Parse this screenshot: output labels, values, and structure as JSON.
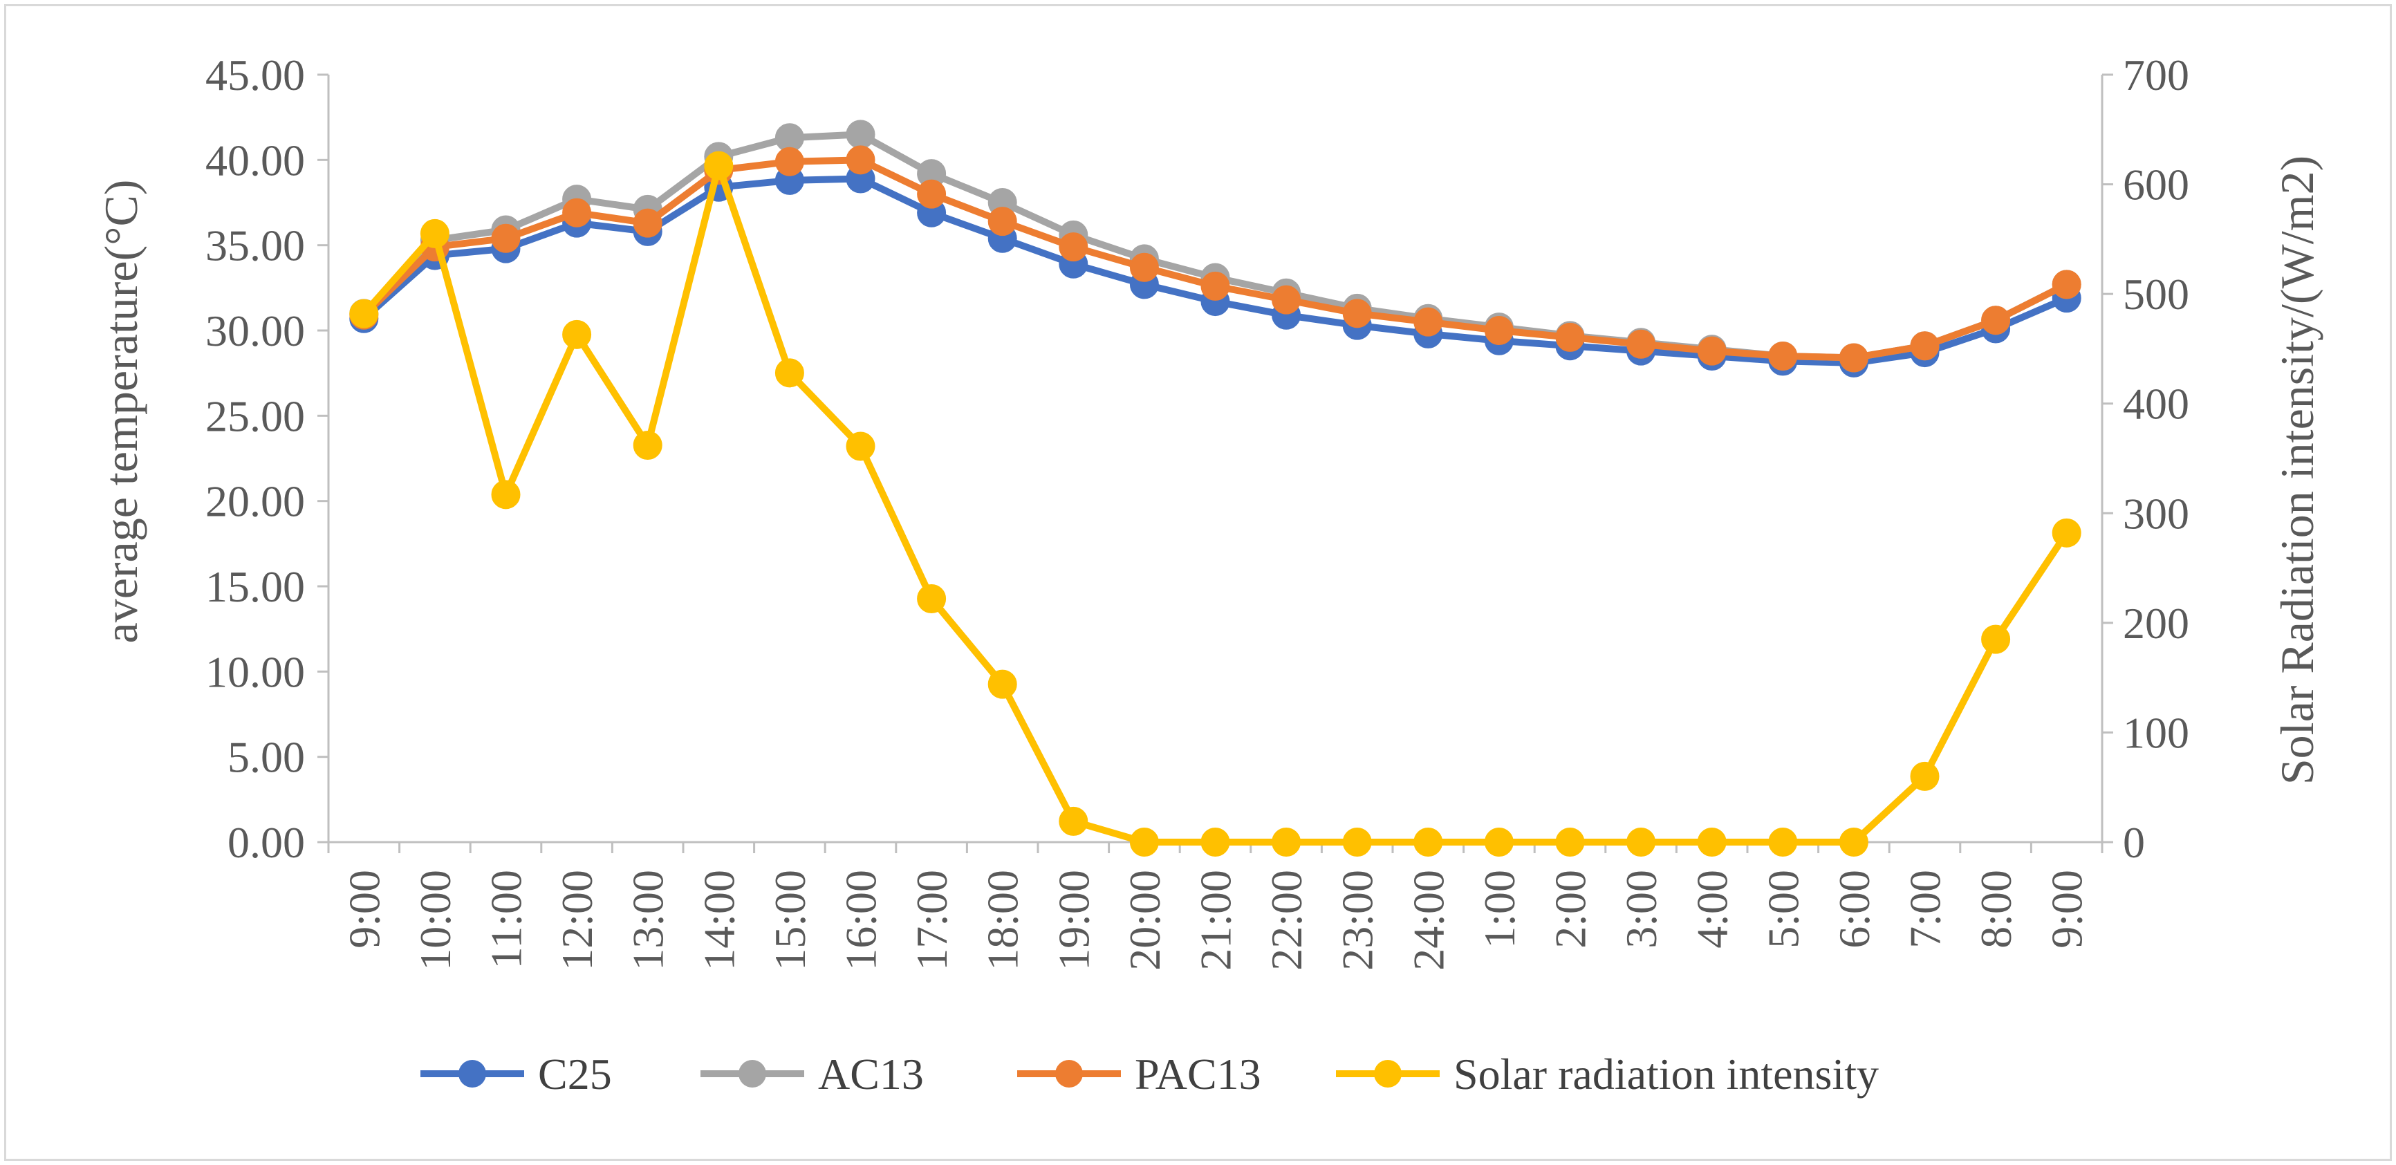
{
  "chart_data": {
    "type": "line",
    "title": "",
    "xlabel": "",
    "ylabel": "average temperature(°C)",
    "y2label": "Solar Radiation intensity/(W/m2)",
    "categories": [
      "9:00",
      "10:00",
      "11:00",
      "12:00",
      "13:00",
      "14:00",
      "15:00",
      "16:00",
      "17:00",
      "18:00",
      "19:00",
      "20:00",
      "21:00",
      "22:00",
      "23:00",
      "24:00",
      "1:00",
      "2:00",
      "3:00",
      "4:00",
      "5:00",
      "6:00",
      "7:00",
      "8:00",
      "9:00"
    ],
    "ylim": [
      0,
      45
    ],
    "yticks": [
      "0.00",
      "5.00",
      "10.00",
      "15.00",
      "20.00",
      "25.00",
      "30.00",
      "35.00",
      "40.00",
      "45.00"
    ],
    "y2lim": [
      0,
      700
    ],
    "y2ticks": [
      "0",
      "100",
      "200",
      "300",
      "400",
      "500",
      "600",
      "700"
    ],
    "legend_position": "bottom",
    "series": [
      {
        "name": "C25",
        "axis": "left",
        "color": "#4472c4",
        "values": [
          30.7,
          34.4,
          34.8,
          36.3,
          35.8,
          38.4,
          38.8,
          38.9,
          36.9,
          35.4,
          33.9,
          32.7,
          31.7,
          30.9,
          30.3,
          29.8,
          29.4,
          29.1,
          28.8,
          28.5,
          28.2,
          28.1,
          28.7,
          30.1,
          31.9
        ]
      },
      {
        "name": "AC13",
        "axis": "left",
        "color": "#a5a5a5",
        "values": [
          31.0,
          35.3,
          35.9,
          37.7,
          37.1,
          40.2,
          41.3,
          41.5,
          39.2,
          37.5,
          35.6,
          34.2,
          33.1,
          32.2,
          31.3,
          30.7,
          30.2,
          29.7,
          29.3,
          28.9,
          28.5,
          28.4,
          29.1,
          30.6,
          32.7
        ]
      },
      {
        "name": "PAC13",
        "axis": "left",
        "color": "#ed7d31",
        "values": [
          30.9,
          34.9,
          35.4,
          36.9,
          36.3,
          39.4,
          39.9,
          40.0,
          38.0,
          36.4,
          34.9,
          33.7,
          32.6,
          31.8,
          31.0,
          30.5,
          30.0,
          29.6,
          29.2,
          28.8,
          28.5,
          28.4,
          29.1,
          30.6,
          32.7
        ]
      },
      {
        "name": "Solar radiation intensity",
        "axis": "right",
        "color": "#ffc000",
        "values": [
          482,
          555,
          317,
          463,
          362,
          617,
          428,
          361,
          222,
          144,
          19,
          0,
          0,
          0,
          0,
          0,
          0,
          0,
          0,
          0,
          0,
          0,
          60,
          185,
          282
        ]
      }
    ]
  }
}
